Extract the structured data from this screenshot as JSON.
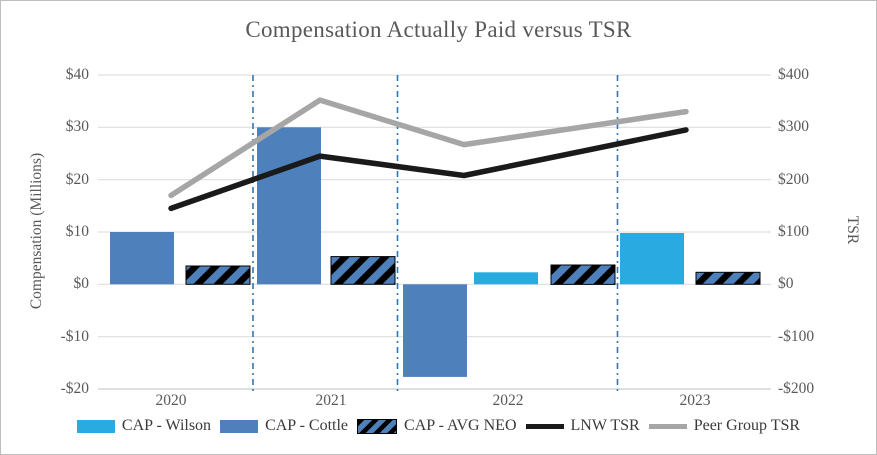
{
  "title": "Compensation Actually Paid versus TSR",
  "chart_data": {
    "type": "combo (clustered bars on left axis + lines on right axis)",
    "categories": [
      "2020",
      "2021",
      "2022",
      "2023"
    ],
    "bar_series": [
      {
        "name": "CAP - Wilson",
        "axis": "left",
        "color": "#29ABE2",
        "values": [
          null,
          null,
          2.3,
          9.8
        ]
      },
      {
        "name": "CAP - Cottle",
        "axis": "left",
        "color": "#4E80BC",
        "values": [
          10.0,
          30.0,
          -17.7,
          null
        ]
      },
      {
        "name": "CAP - AVG NEO",
        "axis": "left",
        "color": "#4E80BC",
        "pattern": "black-diagonal-hatch",
        "values": [
          3.5,
          5.3,
          3.7,
          2.3
        ]
      }
    ],
    "line_series": [
      {
        "name": "LNW TSR",
        "axis": "right",
        "color": "#1A1A1A",
        "values": [
          145,
          245,
          208,
          295
        ]
      },
      {
        "name": "Peer Group TSR",
        "axis": "right",
        "color": "#A6A6A6",
        "values": [
          170,
          352,
          267,
          330
        ]
      }
    ],
    "left_axis": {
      "label": "Compensation (Millions)",
      "min": -20,
      "max": 40,
      "ticks": [
        "$40",
        "$30",
        "$20",
        "$10",
        "$0",
        "-$10",
        "-$20"
      ]
    },
    "right_axis": {
      "label": "TSR",
      "min": -200,
      "max": 400,
      "ticks": [
        "$400",
        "$300",
        "$200",
        "$100",
        "$0",
        "-$100",
        "-$200"
      ]
    },
    "grid": {
      "horizontal_gridlines": true,
      "vertical_year_dividers": "blue dash-dot between year groups"
    },
    "legend_position": "bottom"
  },
  "colors": {
    "divider": "#2E75B6",
    "gridline": "#D9D9D9",
    "axis_line": "#BFBFBF",
    "axis_text": "#595959",
    "title_text": "#595959",
    "legend_text": "#3A3A3A",
    "hatch_stripe": "#000000",
    "background": "#FFFFFF"
  }
}
